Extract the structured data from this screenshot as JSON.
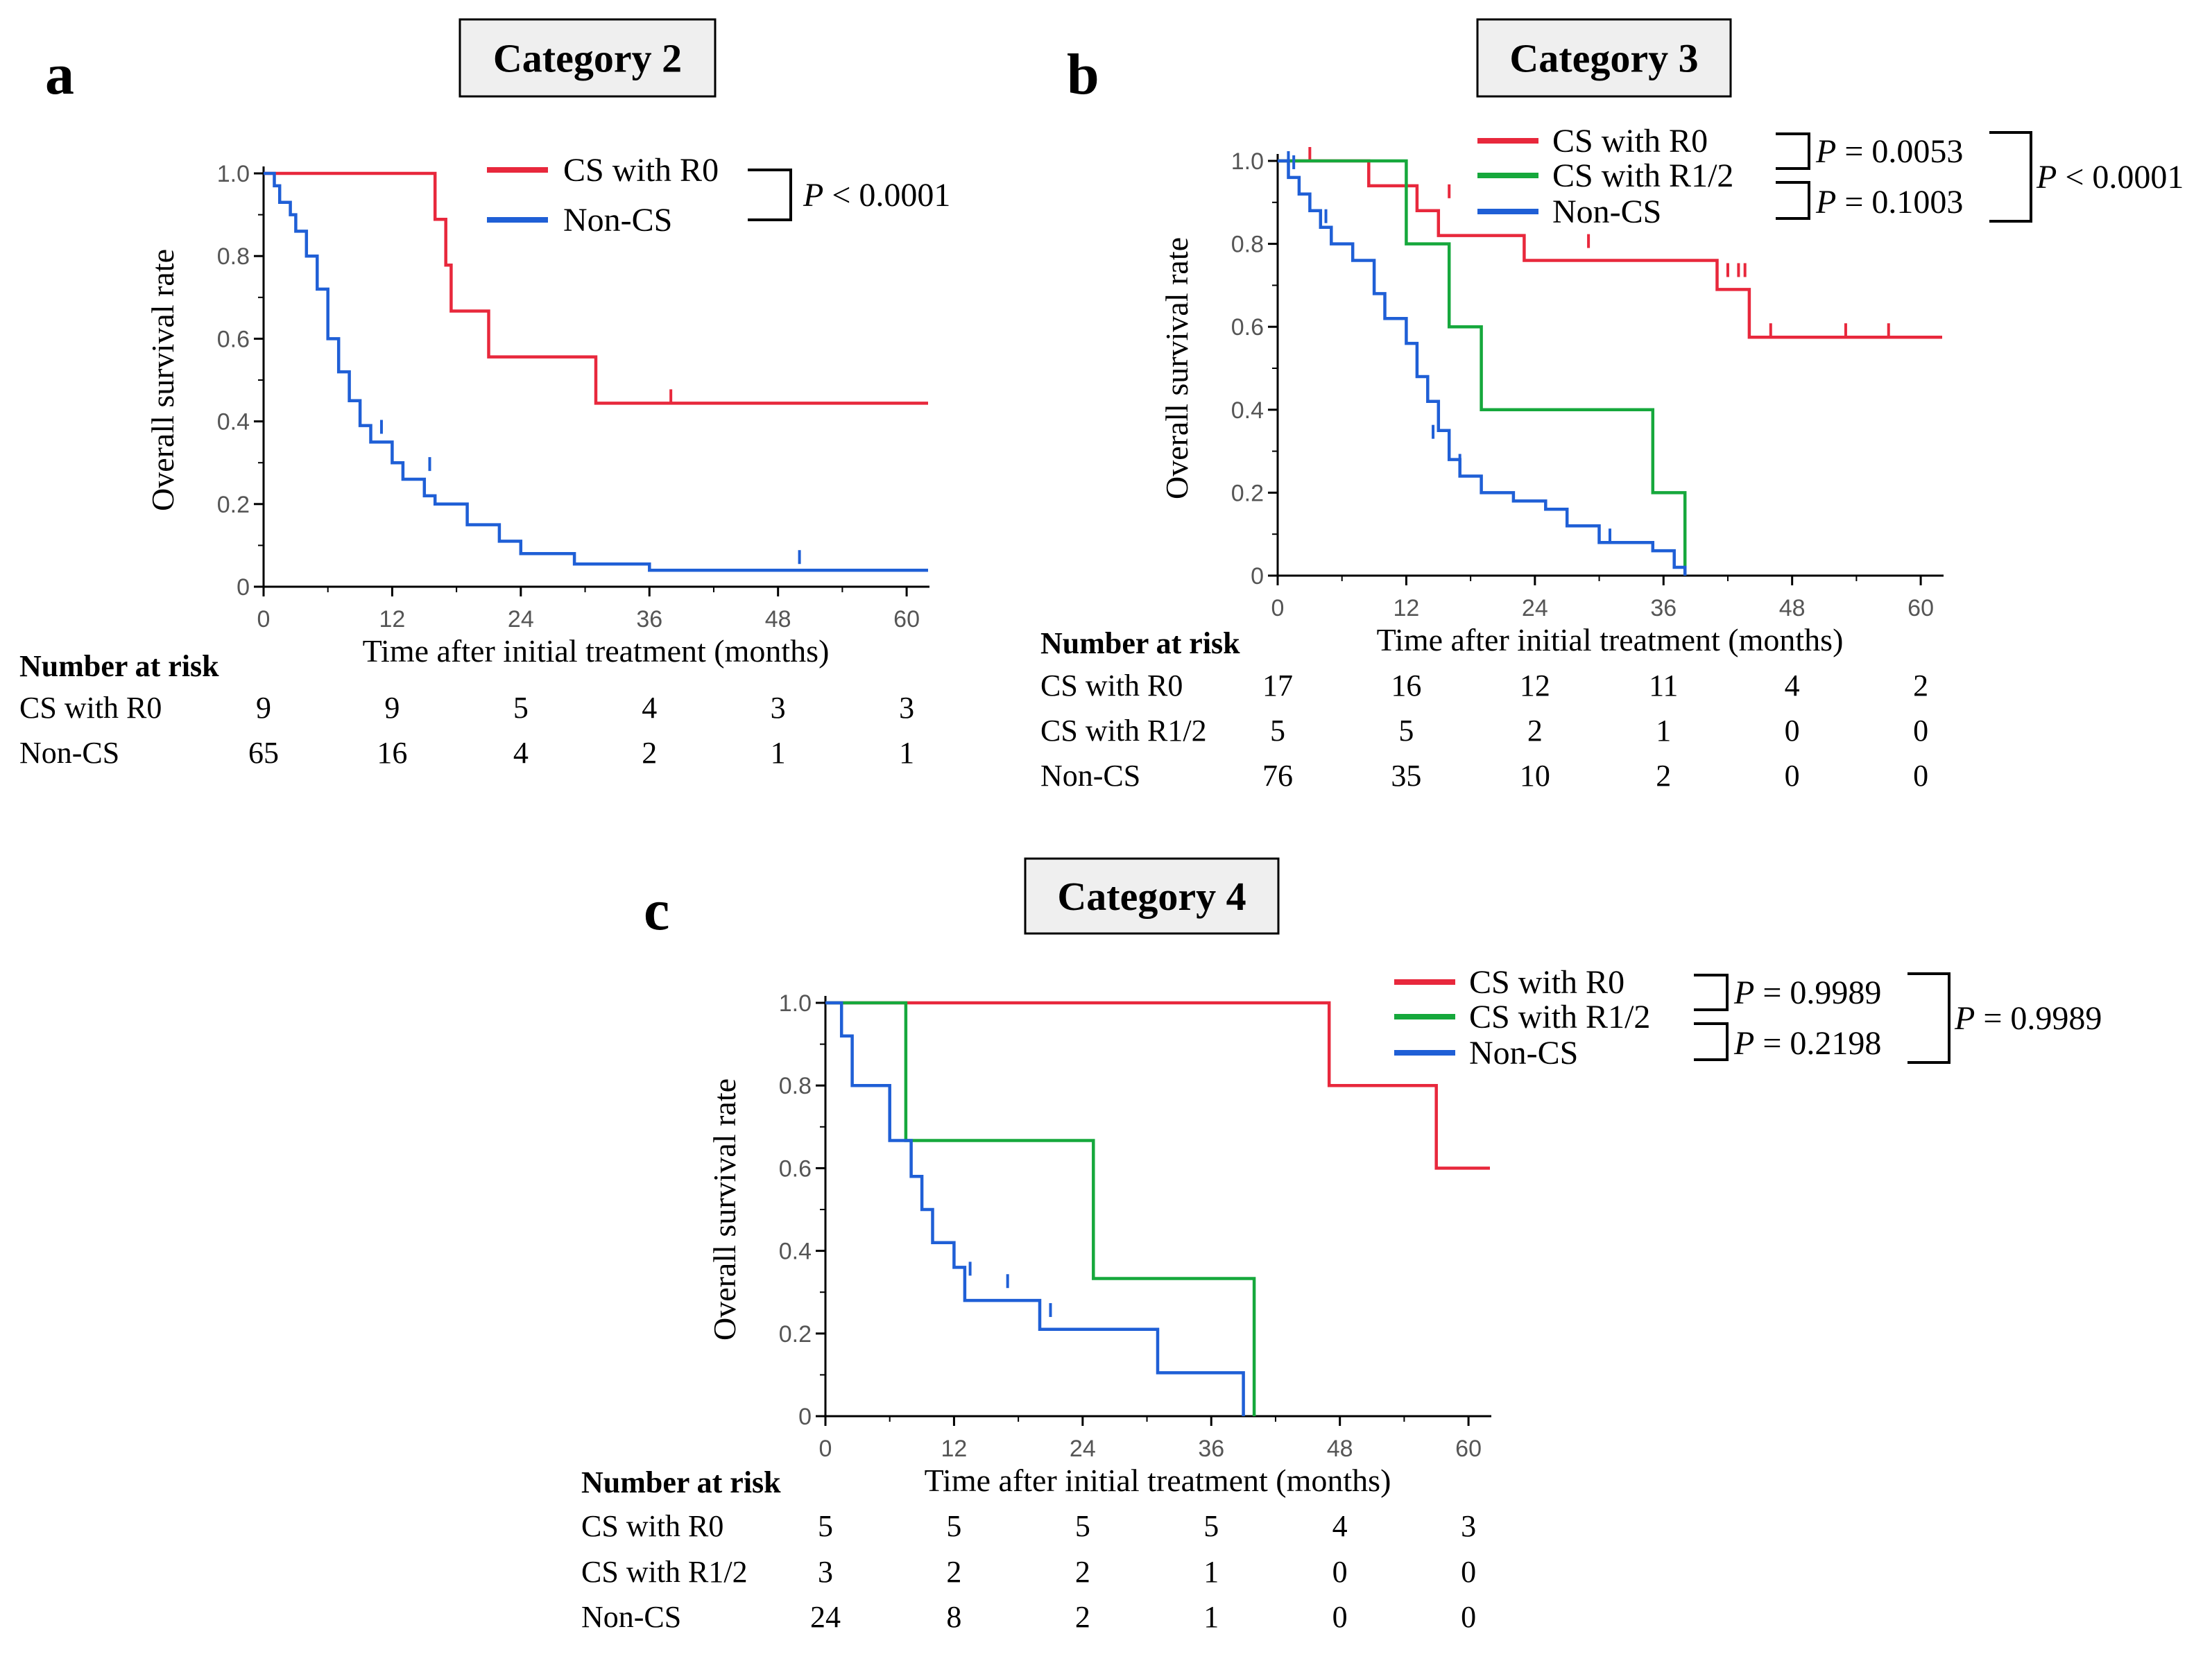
{
  "chart_data": [
    {
      "type": "line",
      "subtype": "kaplan-meier",
      "panel_label": "a",
      "title": "Category 2",
      "xlabel": "Time after initial treatment (months)",
      "ylabel": "Overall survival rate",
      "xlim": [
        0,
        62
      ],
      "ylim": [
        0,
        1.0
      ],
      "x_ticks": [
        "0",
        "12",
        "24",
        "36",
        "48",
        "60"
      ],
      "y_ticks": [
        "0",
        "0.2",
        "0.4",
        "0.6",
        "0.8",
        "1.0"
      ],
      "series": [
        {
          "name": "CS with R0",
          "color": "#e8283c",
          "steps": [
            [
              0,
              1.0
            ],
            [
              16,
              1.0
            ],
            [
              16,
              0.889
            ],
            [
              17,
              0.889
            ],
            [
              17,
              0.778
            ],
            [
              17.5,
              0.778
            ],
            [
              17.5,
              0.667
            ],
            [
              21,
              0.667
            ],
            [
              21,
              0.556
            ],
            [
              31,
              0.556
            ],
            [
              31,
              0.444
            ],
            [
              62,
              0.444
            ]
          ],
          "censor": [
            [
              38,
              0.444
            ]
          ]
        },
        {
          "name": "Non-CS",
          "color": "#1f5fd6",
          "steps": [
            [
              0,
              1.0
            ],
            [
              1,
              1.0
            ],
            [
              1,
              0.97
            ],
            [
              1.5,
              0.97
            ],
            [
              1.5,
              0.93
            ],
            [
              2.5,
              0.93
            ],
            [
              2.5,
              0.9
            ],
            [
              3,
              0.9
            ],
            [
              3,
              0.86
            ],
            [
              4,
              0.86
            ],
            [
              4,
              0.8
            ],
            [
              5,
              0.8
            ],
            [
              5,
              0.72
            ],
            [
              6,
              0.72
            ],
            [
              6,
              0.6
            ],
            [
              7,
              0.6
            ],
            [
              7,
              0.52
            ],
            [
              8,
              0.52
            ],
            [
              8,
              0.45
            ],
            [
              9,
              0.45
            ],
            [
              9,
              0.39
            ],
            [
              10,
              0.39
            ],
            [
              10,
              0.35
            ],
            [
              12,
              0.35
            ],
            [
              12,
              0.3
            ],
            [
              13,
              0.3
            ],
            [
              13,
              0.26
            ],
            [
              15,
              0.26
            ],
            [
              15,
              0.22
            ],
            [
              16,
              0.22
            ],
            [
              16,
              0.2
            ],
            [
              19,
              0.2
            ],
            [
              19,
              0.15
            ],
            [
              22,
              0.15
            ],
            [
              22,
              0.11
            ],
            [
              24,
              0.11
            ],
            [
              24,
              0.08
            ],
            [
              29,
              0.08
            ],
            [
              29,
              0.055
            ],
            [
              36,
              0.055
            ],
            [
              36,
              0.04
            ],
            [
              62,
              0.04
            ]
          ],
          "censor": [
            [
              11,
              0.37
            ],
            [
              15.5,
              0.28
            ],
            [
              50,
              0.055
            ]
          ]
        }
      ],
      "legend": {
        "entries": [
          "CS with R0",
          "Non-CS"
        ],
        "placement": "top-right",
        "pvalues": [
          {
            "label": "P",
            "text": " < 0.0001"
          }
        ]
      },
      "risk_table": {
        "header": "Number at risk",
        "rows": [
          {
            "label": "CS with R0",
            "values": [
              "9",
              "9",
              "5",
              "4",
              "3",
              "3"
            ]
          },
          {
            "label": "Non-CS",
            "values": [
              "65",
              "16",
              "4",
              "2",
              "1",
              "1"
            ]
          }
        ]
      }
    },
    {
      "type": "line",
      "subtype": "kaplan-meier",
      "panel_label": "b",
      "title": "Category 3",
      "xlabel": "Time after initial treatment (months)",
      "ylabel": "Overall survival rate",
      "xlim": [
        0,
        62
      ],
      "ylim": [
        0,
        1.0
      ],
      "x_ticks": [
        "0",
        "12",
        "24",
        "36",
        "48",
        "60"
      ],
      "y_ticks": [
        "0",
        "0.2",
        "0.4",
        "0.6",
        "0.8",
        "1.0"
      ],
      "series": [
        {
          "name": "CS with R0",
          "color": "#e8283c",
          "steps": [
            [
              0,
              1.0
            ],
            [
              8.5,
              1.0
            ],
            [
              8.5,
              0.94
            ],
            [
              13,
              0.94
            ],
            [
              13,
              0.88
            ],
            [
              15,
              0.88
            ],
            [
              15,
              0.82
            ],
            [
              23,
              0.82
            ],
            [
              23,
              0.76
            ],
            [
              41,
              0.76
            ],
            [
              41,
              0.69
            ],
            [
              44,
              0.69
            ],
            [
              44,
              0.575
            ],
            [
              62,
              0.575
            ]
          ],
          "censor": [
            [
              3,
              1.0
            ],
            [
              16,
              0.91
            ],
            [
              29,
              0.79
            ],
            [
              42,
              0.72
            ],
            [
              43,
              0.72
            ],
            [
              43.6,
              0.72
            ],
            [
              46,
              0.575
            ],
            [
              53,
              0.575
            ],
            [
              57,
              0.575
            ]
          ]
        },
        {
          "name": "CS with R1/2",
          "color": "#16a83c",
          "steps": [
            [
              0,
              1.0
            ],
            [
              12,
              1.0
            ],
            [
              12,
              0.8
            ],
            [
              16,
              0.8
            ],
            [
              16,
              0.6
            ],
            [
              19,
              0.6
            ],
            [
              19,
              0.4
            ],
            [
              35,
              0.4
            ],
            [
              35,
              0.2
            ],
            [
              38,
              0.2
            ],
            [
              38,
              0.0
            ]
          ],
          "censor": []
        },
        {
          "name": "Non-CS",
          "color": "#1f5fd6",
          "steps": [
            [
              0,
              1.0
            ],
            [
              1,
              1.0
            ],
            [
              1,
              0.96
            ],
            [
              2,
              0.96
            ],
            [
              2,
              0.92
            ],
            [
              3,
              0.92
            ],
            [
              3,
              0.88
            ],
            [
              4,
              0.88
            ],
            [
              4,
              0.84
            ],
            [
              5,
              0.84
            ],
            [
              5,
              0.8
            ],
            [
              7,
              0.8
            ],
            [
              7,
              0.76
            ],
            [
              9,
              0.76
            ],
            [
              9,
              0.68
            ],
            [
              10,
              0.68
            ],
            [
              10,
              0.62
            ],
            [
              12,
              0.62
            ],
            [
              12,
              0.56
            ],
            [
              13,
              0.56
            ],
            [
              13,
              0.48
            ],
            [
              14,
              0.48
            ],
            [
              14,
              0.42
            ],
            [
              15,
              0.42
            ],
            [
              15,
              0.35
            ],
            [
              16,
              0.35
            ],
            [
              16,
              0.28
            ],
            [
              17,
              0.28
            ],
            [
              17,
              0.24
            ],
            [
              19,
              0.24
            ],
            [
              19,
              0.2
            ],
            [
              22,
              0.2
            ],
            [
              22,
              0.18
            ],
            [
              25,
              0.18
            ],
            [
              25,
              0.16
            ],
            [
              27,
              0.16
            ],
            [
              27,
              0.12
            ],
            [
              30,
              0.12
            ],
            [
              30,
              0.08
            ],
            [
              35,
              0.08
            ],
            [
              35,
              0.06
            ],
            [
              37,
              0.06
            ],
            [
              37,
              0.02
            ],
            [
              38,
              0.02
            ],
            [
              38,
              0.0
            ]
          ],
          "censor": [
            [
              1,
              0.99
            ],
            [
              1.5,
              0.98
            ],
            [
              4.5,
              0.85
            ],
            [
              14.5,
              0.33
            ],
            [
              17,
              0.26
            ],
            [
              31,
              0.08
            ]
          ]
        }
      ],
      "legend": {
        "entries": [
          "CS with R0",
          "CS with R1/2",
          "Non-CS"
        ],
        "placement": "top-right",
        "pvalues": [
          {
            "label": "P",
            "text": " = 0.0053"
          },
          {
            "label": "P",
            "text": " = 0.1003"
          },
          {
            "label": "P",
            "text": " < 0.0001"
          }
        ]
      },
      "risk_table": {
        "header": "Number at risk",
        "rows": [
          {
            "label": "CS with R0",
            "values": [
              "17",
              "16",
              "12",
              "11",
              "4",
              "2"
            ]
          },
          {
            "label": "CS with R1/2",
            "values": [
              "5",
              "5",
              "2",
              "1",
              "0",
              "0"
            ]
          },
          {
            "label": "Non-CS",
            "values": [
              "76",
              "35",
              "10",
              "2",
              "0",
              "0"
            ]
          }
        ]
      }
    },
    {
      "type": "line",
      "subtype": "kaplan-meier",
      "panel_label": "c",
      "title": "Category 4",
      "xlabel": "Time after initial treatment (months)",
      "ylabel": "Overall survival rate",
      "xlim": [
        0,
        62
      ],
      "ylim": [
        0,
        1.0
      ],
      "x_ticks": [
        "0",
        "12",
        "24",
        "36",
        "48",
        "60"
      ],
      "y_ticks": [
        "0",
        "0.2",
        "0.4",
        "0.6",
        "0.8",
        "1.0"
      ],
      "series": [
        {
          "name": "CS with R0",
          "color": "#e8283c",
          "steps": [
            [
              0,
              1.0
            ],
            [
              47,
              1.0
            ],
            [
              47,
              0.8
            ],
            [
              57,
              0.8
            ],
            [
              57,
              0.6
            ],
            [
              62,
              0.6
            ]
          ],
          "censor": []
        },
        {
          "name": "CS with R1/2",
          "color": "#16a83c",
          "steps": [
            [
              0,
              1.0
            ],
            [
              7.5,
              1.0
            ],
            [
              7.5,
              0.667
            ],
            [
              25,
              0.667
            ],
            [
              25,
              0.333
            ],
            [
              40,
              0.333
            ],
            [
              40,
              0.0
            ]
          ],
          "censor": []
        },
        {
          "name": "Non-CS",
          "color": "#1f5fd6",
          "steps": [
            [
              0,
              1.0
            ],
            [
              1.5,
              1.0
            ],
            [
              1.5,
              0.92
            ],
            [
              2.5,
              0.92
            ],
            [
              2.5,
              0.8
            ],
            [
              6,
              0.8
            ],
            [
              6,
              0.667
            ],
            [
              8,
              0.667
            ],
            [
              8,
              0.58
            ],
            [
              9,
              0.58
            ],
            [
              9,
              0.5
            ],
            [
              10,
              0.5
            ],
            [
              10,
              0.42
            ],
            [
              12,
              0.42
            ],
            [
              12,
              0.36
            ],
            [
              13,
              0.36
            ],
            [
              13,
              0.28
            ],
            [
              20,
              0.28
            ],
            [
              20,
              0.21
            ],
            [
              31,
              0.21
            ],
            [
              31,
              0.105
            ],
            [
              39,
              0.105
            ],
            [
              39,
              0.0
            ]
          ],
          "censor": [
            [
              13.5,
              0.34
            ],
            [
              17,
              0.31
            ],
            [
              21,
              0.24
            ]
          ]
        }
      ],
      "legend": {
        "entries": [
          "CS with R0",
          "CS with R1/2",
          "Non-CS"
        ],
        "placement": "top-right",
        "pvalues": [
          {
            "label": "P",
            "text": " = 0.9989"
          },
          {
            "label": "P",
            "text": " = 0.2198"
          },
          {
            "label": "P",
            "text": " = 0.9989"
          }
        ]
      },
      "risk_table": {
        "header": "Number at risk",
        "rows": [
          {
            "label": "CS with R0",
            "values": [
              "5",
              "5",
              "5",
              "5",
              "4",
              "3"
            ]
          },
          {
            "label": "CS with R1/2",
            "values": [
              "3",
              "2",
              "2",
              "1",
              "0",
              "0"
            ]
          },
          {
            "label": "Non-CS",
            "values": [
              "24",
              "8",
              "2",
              "1",
              "0",
              "0"
            ]
          }
        ]
      }
    }
  ]
}
